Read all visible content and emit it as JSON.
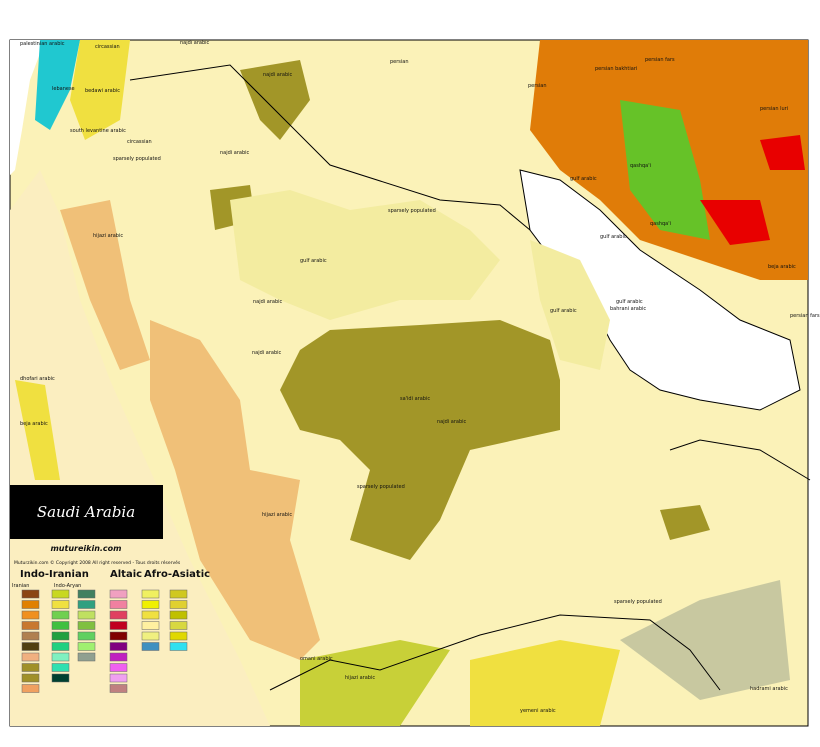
{
  "map": {
    "title": "Saudi Arabia",
    "site": "mutureikin.com",
    "copyright": "Muturzikin.com © Copyright 2008 All right reserved - Tous droits réservés",
    "legend": {
      "groups": [
        "Indo-Iranian",
        "Altaic",
        "Afro-Asiatic"
      ],
      "subgroups": [
        "Iranian",
        "Indo-Aryan"
      ]
    },
    "labels": [
      "palestinian arabic",
      "circassian",
      "najdi arabic",
      "lebanese",
      "bedawi arabic",
      "south levantine arabic",
      "circassian",
      "sparsely populated",
      "najdi arabic",
      "najdi arabic",
      "persian",
      "persian",
      "persian fars",
      "persian bakhtiari",
      "persian luri",
      "qashqa'i",
      "qashqa'i",
      "gulf arabic",
      "gulf arabic",
      "gulf arabic",
      "sparsely populated",
      "gulf arabic",
      "najdi arabic",
      "hijazi arabic",
      "bahrani arabic",
      "gulf arabic",
      "najdi arabic",
      "najdi arabic",
      "hijazi arabic",
      "sparsely populated",
      "sparsely populated",
      "hijazi arabic",
      "yemeni arabic",
      "hadrami arabic",
      "dhofari arabic",
      "beja arabic",
      "beja arabic",
      "persian fars",
      "omani arabic",
      "sa'idi arabic"
    ]
  }
}
